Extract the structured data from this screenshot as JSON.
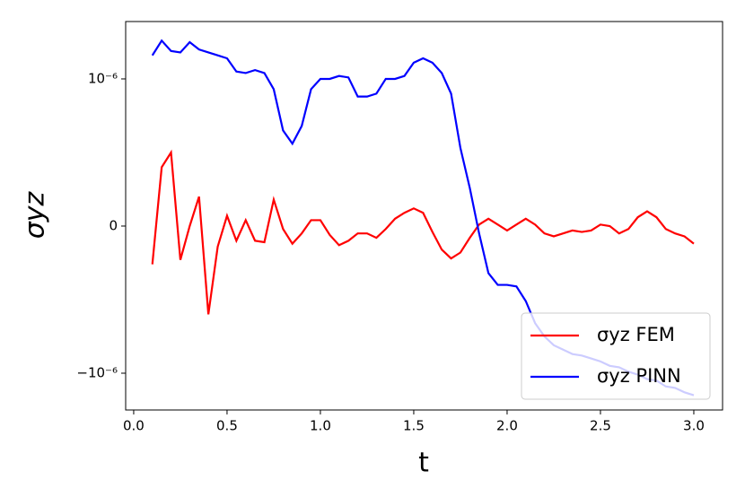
{
  "chart_data": {
    "type": "line",
    "xlabel": "t",
    "ylabel": "σyz",
    "x": [
      0.1,
      0.15,
      0.2,
      0.25,
      0.3,
      0.35,
      0.4,
      0.45,
      0.5,
      0.55,
      0.6,
      0.65,
      0.7,
      0.75,
      0.8,
      0.85,
      0.9,
      0.95,
      1.0,
      1.05,
      1.1,
      1.15,
      1.2,
      1.25,
      1.3,
      1.35,
      1.4,
      1.45,
      1.5,
      1.55,
      1.6,
      1.65,
      1.7,
      1.75,
      1.8,
      1.85,
      1.9,
      1.95,
      2.0,
      2.05,
      2.1,
      2.15,
      2.2,
      2.25,
      2.3,
      2.35,
      2.4,
      2.45,
      2.5,
      2.55,
      2.6,
      2.65,
      2.7,
      2.75,
      2.8,
      2.85,
      2.9,
      2.95,
      3.0
    ],
    "series": [
      {
        "name": "σyz FEM",
        "color": "#ff0000",
        "values": [
          -2.6e-07,
          4e-07,
          5e-07,
          -2.3e-07,
          0,
          2e-07,
          -6e-07,
          -1.4e-07,
          7e-08,
          -1e-07,
          4e-08,
          -1e-07,
          -1.1e-07,
          1.8e-07,
          -2e-08,
          -1.2e-07,
          -5e-08,
          4e-08,
          4e-08,
          -6e-08,
          -1.3e-07,
          -1e-07,
          -5e-08,
          -5e-08,
          -8e-08,
          -2e-08,
          5e-08,
          9e-08,
          1.2e-07,
          9e-08,
          -4e-08,
          -1.6e-07,
          -2.2e-07,
          -1.8e-07,
          -8e-08,
          1e-08,
          5e-08,
          1e-08,
          -3e-08,
          1e-08,
          5e-08,
          1e-08,
          -5e-08,
          -7e-08,
          -5e-08,
          -3e-08,
          -4e-08,
          -3e-08,
          1e-08,
          0,
          -5e-08,
          -2e-08,
          6e-08,
          1e-07,
          6e-08,
          -2e-08,
          -5e-08,
          -7e-08,
          -1.2e-07
        ]
      },
      {
        "name": "σyz PINN",
        "color": "#0000ff",
        "values": [
          1.16e-06,
          1.26e-06,
          1.19e-06,
          1.18e-06,
          1.25e-06,
          1.2e-06,
          1.18e-06,
          1.16e-06,
          1.14e-06,
          1.05e-06,
          1.04e-06,
          1.06e-06,
          1.04e-06,
          9.3e-07,
          6.5e-07,
          5.6e-07,
          6.8e-07,
          9.3e-07,
          1e-06,
          1e-06,
          1.02e-06,
          1.01e-06,
          8.8e-07,
          8.8e-07,
          9e-07,
          1e-06,
          1e-06,
          1.02e-06,
          1.11e-06,
          1.14e-06,
          1.11e-06,
          1.04e-06,
          9e-07,
          5.3e-07,
          2.6e-07,
          -5e-08,
          -3.2e-07,
          -4e-07,
          -4e-07,
          -4.1e-07,
          -5.1e-07,
          -6.6e-07,
          -7.5e-07,
          -8.1e-07,
          -8.4e-07,
          -8.7e-07,
          -8.8e-07,
          -9e-07,
          -9.2e-07,
          -9.5e-07,
          -9.6e-07,
          -9.9e-07,
          -1.01e-06,
          -1.04e-06,
          -1.05e-06,
          -1.09e-06,
          -1.1e-06,
          -1.13e-06,
          -1.15e-06
        ]
      }
    ],
    "xlim": [
      -0.043,
      3.154
    ],
    "ylim": [
      -1.25e-06,
      1.39e-06
    ],
    "xticks": [
      {
        "value": 0,
        "label": "0.0"
      },
      {
        "value": 0.5,
        "label": "0.5"
      },
      {
        "value": 1,
        "label": "1.0"
      },
      {
        "value": 1.5,
        "label": "1.5"
      },
      {
        "value": 2,
        "label": "2.0"
      },
      {
        "value": 2.5,
        "label": "2.5"
      },
      {
        "value": 3,
        "label": "3.0"
      }
    ],
    "yticks": [
      {
        "value": -1e-06,
        "label": "−10⁻⁶"
      },
      0,
      {
        "value": 1e-06,
        "label": "10⁻⁶"
      }
    ],
    "legend": "lower right"
  }
}
